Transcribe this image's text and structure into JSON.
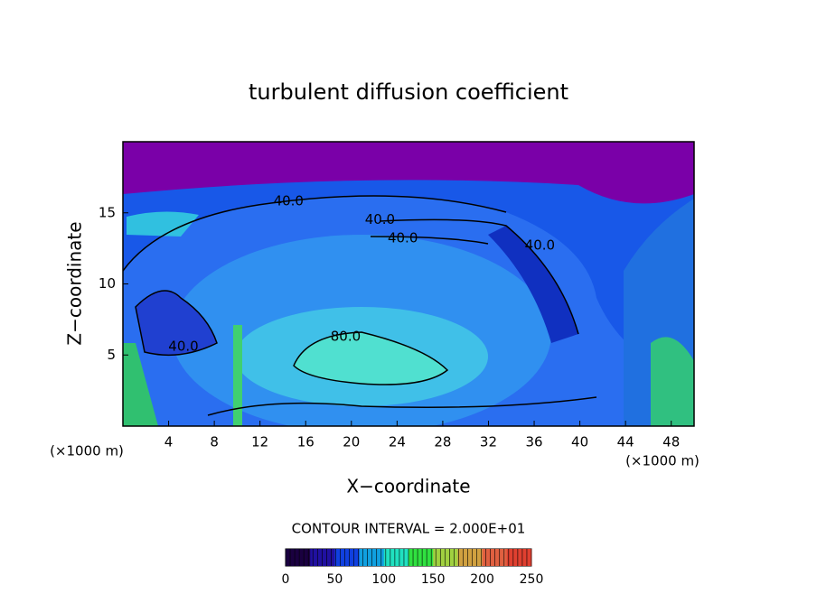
{
  "chart_data": {
    "type": "contour",
    "title": "turbulent diffusion coefficient",
    "xlabel": "X−coordinate",
    "ylabel": "Z−coordinate",
    "xunit": "(×1000 m)",
    "yunit": "(×1000 m)",
    "xlim": [
      0,
      50
    ],
    "xticks": [
      4,
      8,
      12,
      16,
      20,
      24,
      28,
      32,
      36,
      40,
      44,
      48
    ],
    "ylim": [
      0,
      20
    ],
    "yticks": [
      5,
      10,
      15
    ],
    "contour_labels": [
      {
        "label": "40.0",
        "level": 40,
        "x": 14.5,
        "y": 15.8
      },
      {
        "label": "40.0",
        "level": 40,
        "x": 22.5,
        "y": 14.5
      },
      {
        "label": "40.0",
        "level": 40,
        "x": 24.5,
        "y": 13.2
      },
      {
        "label": "40.0",
        "level": 40,
        "x": 36.5,
        "y": 12.7
      },
      {
        "label": "40.0",
        "level": 40,
        "x": 5.3,
        "y": 5.6
      },
      {
        "label": "80.0",
        "level": 80,
        "x": 19.5,
        "y": 6.3
      }
    ],
    "contour_interval_text": "CONTOUR INTERVAL = 2.000E+01",
    "colorbar": {
      "lim": [
        0,
        250
      ],
      "ticks": [
        0,
        50,
        100,
        150,
        200,
        250
      ],
      "colors": [
        "#1a0040",
        "#2010a0",
        "#1040e0",
        "#10a0e0",
        "#20e0c0",
        "#30e040",
        "#a0d040",
        "#d0a040",
        "#e06040",
        "#e04030"
      ]
    }
  }
}
